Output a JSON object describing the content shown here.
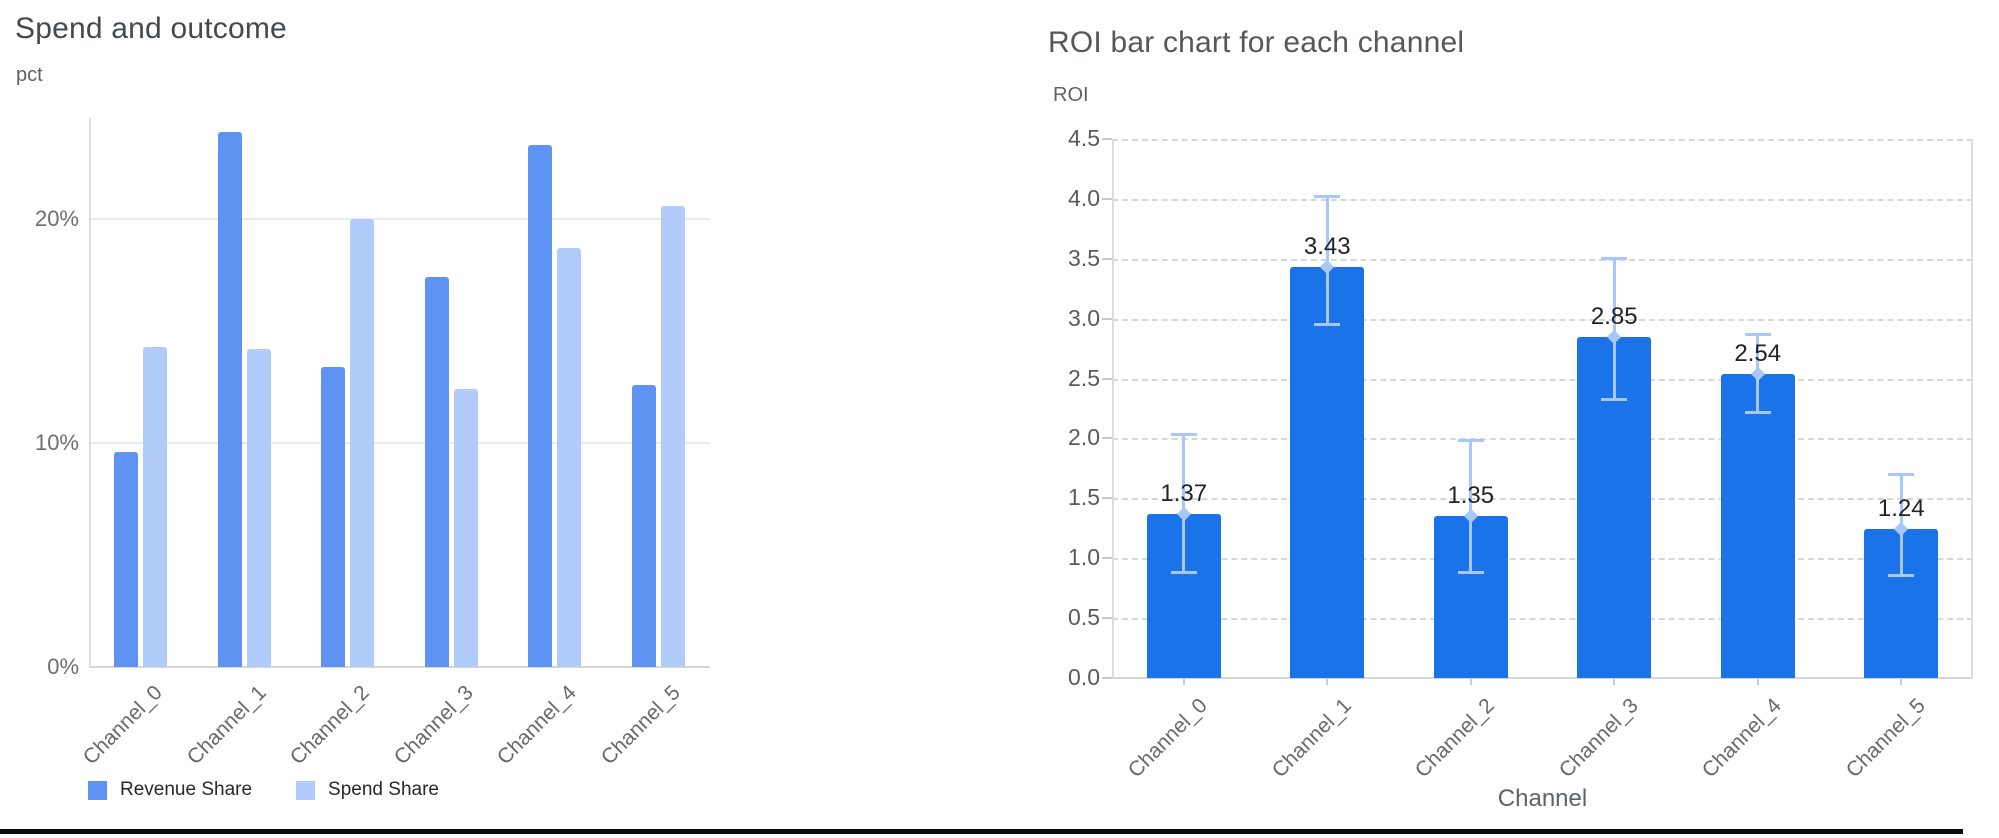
{
  "chart_data": [
    {
      "id": "spend_outcome",
      "type": "bar",
      "title": "Spend and outcome",
      "ylabel": "pct",
      "xlabel": "",
      "categories": [
        "Channel_0",
        "Channel_1",
        "Channel_2",
        "Channel_3",
        "Channel_4",
        "Channel_5"
      ],
      "series": [
        {
          "name": "Revenue Share",
          "color": "#5e92f3",
          "values": [
            9.6,
            23.9,
            13.4,
            17.4,
            23.3,
            12.6
          ]
        },
        {
          "name": "Spend Share",
          "color": "#b1cbfa",
          "values": [
            14.3,
            14.2,
            20.0,
            12.4,
            18.7,
            20.6
          ]
        }
      ],
      "yticks": [
        {
          "v": 0,
          "label": "0%"
        },
        {
          "v": 10,
          "label": "10%"
        },
        {
          "v": 20,
          "label": "20%"
        }
      ],
      "ylim": [
        0,
        25.1
      ],
      "grid": "horizontal",
      "legend_position": "bottom"
    },
    {
      "id": "roi_by_channel",
      "type": "bar",
      "title": "ROI bar chart for each channel",
      "ylabel": "ROI",
      "xlabel": "Channel",
      "categories": [
        "Channel_0",
        "Channel_1",
        "Channel_2",
        "Channel_3",
        "Channel_4",
        "Channel_5"
      ],
      "values": [
        1.37,
        3.43,
        1.35,
        2.85,
        2.54,
        1.24
      ],
      "value_labels": [
        "1.37",
        "3.43",
        "1.35",
        "2.85",
        "2.54",
        "1.24"
      ],
      "error_low": [
        0.88,
        2.95,
        0.88,
        2.32,
        2.21,
        0.85
      ],
      "error_high": [
        2.04,
        4.02,
        1.99,
        3.51,
        2.87,
        1.7
      ],
      "bar_color": "#1a73e8",
      "error_color": "#a8c7fa",
      "yticks": [
        {
          "v": 0.0,
          "label": "0.0"
        },
        {
          "v": 0.5,
          "label": "0.5"
        },
        {
          "v": 1.0,
          "label": "1.0"
        },
        {
          "v": 1.5,
          "label": "1.5"
        },
        {
          "v": 2.0,
          "label": "2.0"
        },
        {
          "v": 2.5,
          "label": "2.5"
        },
        {
          "v": 3.0,
          "label": "3.0"
        },
        {
          "v": 3.5,
          "label": "3.5"
        },
        {
          "v": 4.0,
          "label": "4.0"
        },
        {
          "v": 4.5,
          "label": "4.5"
        }
      ],
      "ylim": [
        0,
        4.5
      ],
      "grid": "dashed horizontal",
      "legend_position": "none"
    }
  ]
}
